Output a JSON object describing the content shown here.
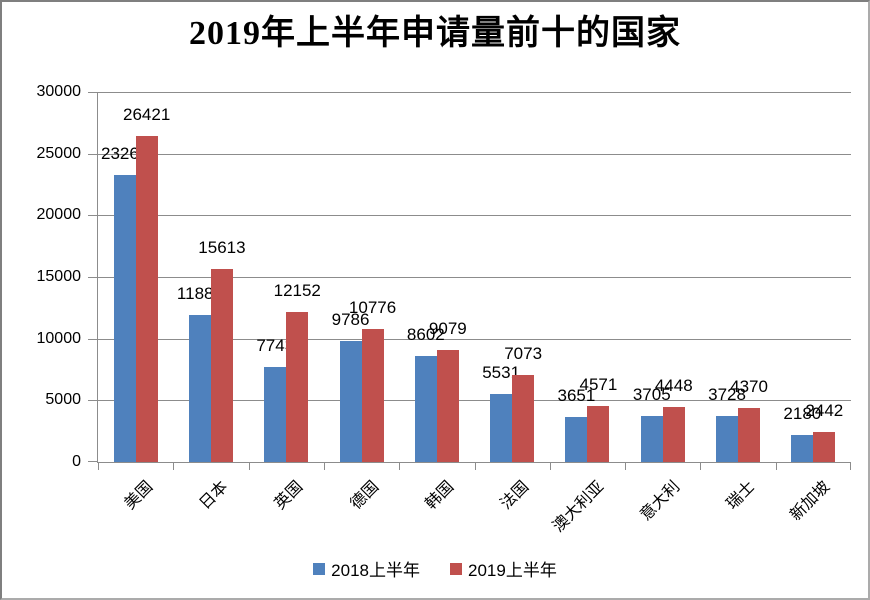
{
  "title": "2019年上半年申请量前十的国家",
  "colors": {
    "series_2018": "#4f81bd",
    "series_2019": "#c0504d",
    "grid": "#8c8c8c",
    "text": "#000000"
  },
  "chart_data": {
    "type": "bar",
    "title": "2019年上半年申请量前十的国家",
    "categories": [
      "美国",
      "日本",
      "英国",
      "德国",
      "韩国",
      "法国",
      "澳大利亚",
      "意大利",
      "瑞士",
      "新加坡"
    ],
    "series": [
      {
        "name": "2018上半年",
        "color": "#4f81bd",
        "values": [
          23263,
          11885,
          7743,
          9786,
          8602,
          5531,
          3651,
          3705,
          3728,
          2180
        ]
      },
      {
        "name": "2019上半年",
        "color": "#c0504d",
        "values": [
          26421,
          15613,
          12152,
          10776,
          9079,
          7073,
          4571,
          4448,
          4370,
          2442
        ]
      }
    ],
    "xlabel": "",
    "ylabel": "",
    "ylim": [
      0,
      30000
    ],
    "ytick_step": 5000,
    "yticks": [
      "0",
      "5000",
      "10000",
      "15000",
      "20000",
      "25000",
      "30000"
    ],
    "grid": true,
    "data_labels": true,
    "legend_position": "bottom"
  }
}
